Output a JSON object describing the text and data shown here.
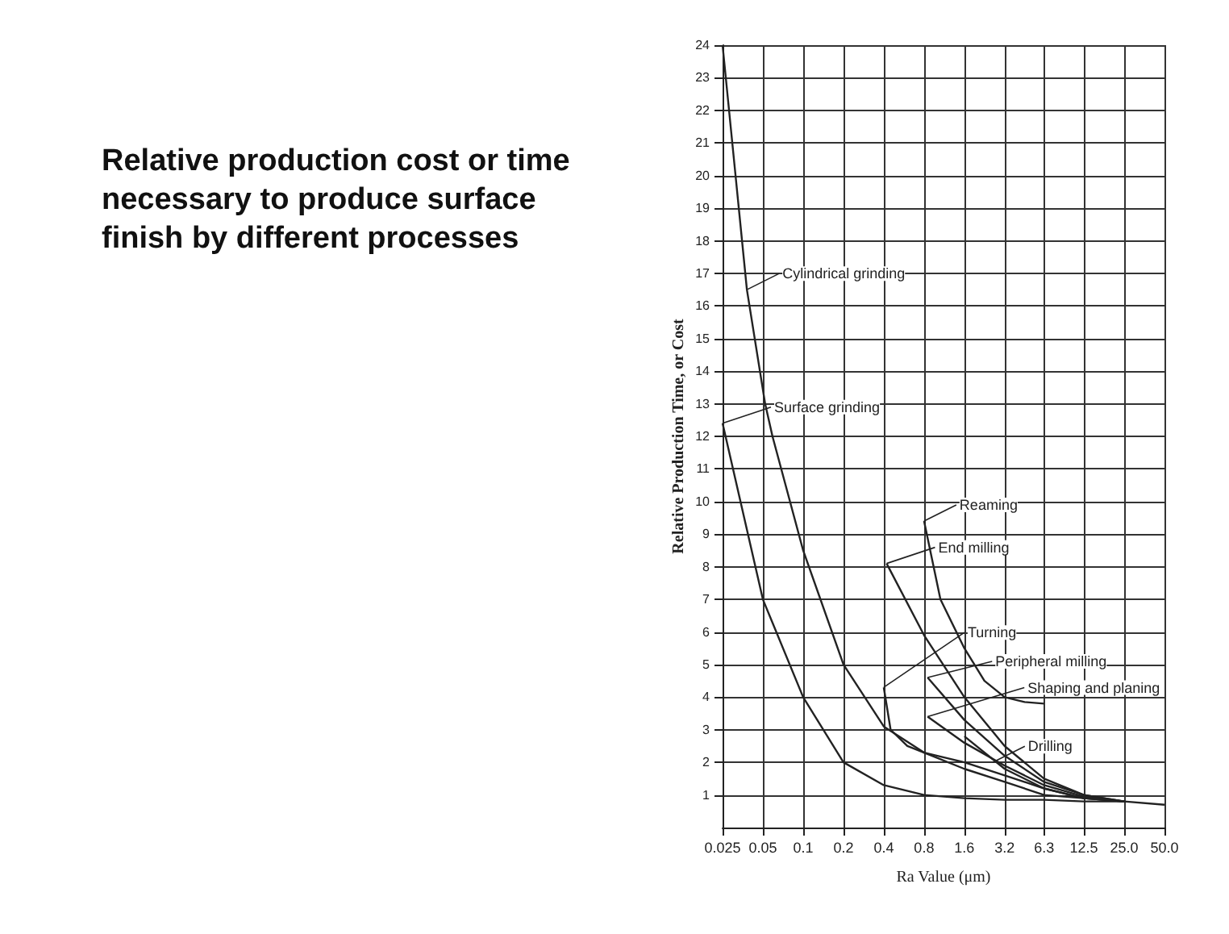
{
  "chart_data": {
    "type": "line",
    "title": "Relative production cost or time necessary to produce surface finish by different processes",
    "xlabel": "Ra Value (μm)",
    "ylabel": "Relative Production Time, or Cost",
    "log": "x",
    "xlim": [
      0.025,
      50
    ],
    "ylim": [
      0,
      24
    ],
    "xticks": [
      {
        "value": 0.025,
        "label": "0.025"
      },
      0.05,
      0.1,
      0.2,
      0.4,
      0.8,
      1.6,
      3.2,
      6.3,
      12.5,
      {
        "value": 25,
        "label": "25.0"
      },
      {
        "value": 50,
        "label": "50.0"
      }
    ],
    "yticks": [
      1,
      2,
      3,
      4,
      5,
      6,
      7,
      8,
      9,
      10,
      11,
      12,
      13,
      14,
      15,
      16,
      17,
      18,
      19,
      20,
      21,
      22,
      23,
      24
    ],
    "grid": true,
    "marker": "none",
    "line_style": "solid",
    "series": [
      {
        "color": "#222222",
        "x": [
          0.025,
          0.038,
          0.052,
          0.059,
          0.1,
          0.2,
          0.4,
          0.8,
          1.6,
          3.2,
          6.3,
          12.5,
          25,
          50
        ],
        "values": [
          24,
          16.5,
          13,
          12,
          8.5,
          5,
          3.1,
          2.3,
          1.8,
          1.4,
          1.0,
          0.9,
          0.8,
          0.7
        ]
      },
      {
        "color": "#222222",
        "x": [
          0.025,
          0.05,
          0.1,
          0.2,
          0.4,
          0.8,
          1.6,
          3.2,
          6.3,
          12.5,
          25
        ],
        "values": [
          12.4,
          7,
          4,
          2,
          1.3,
          1.0,
          0.9,
          0.85,
          0.85,
          0.8,
          0.8
        ]
      },
      {
        "color": "#222222",
        "x": [
          0.8,
          1.06,
          1.6,
          2.26,
          3.2,
          4.5,
          6.3
        ],
        "values": [
          9.4,
          7,
          5.5,
          4.5,
          4.0,
          3.85,
          3.8
        ]
      },
      {
        "color": "#222222",
        "x": [
          0.42,
          0.8,
          1.6,
          3.2,
          6.3,
          12.5,
          25
        ],
        "values": [
          8.1,
          5.9,
          4.0,
          2.5,
          1.5,
          1.0,
          0.8
        ]
      },
      {
        "color": "#222222",
        "x": [
          0.4,
          0.45,
          0.6,
          0.8,
          1.6,
          3.2,
          6.3,
          12.5,
          25
        ],
        "values": [
          4.3,
          3.0,
          2.5,
          2.3,
          2.0,
          1.6,
          1.2,
          0.9,
          0.8
        ]
      },
      {
        "color": "#222222",
        "x": [
          0.85,
          1.6,
          3.2,
          6.3,
          12.5,
          25
        ],
        "values": [
          4.6,
          3.3,
          2.2,
          1.4,
          1.0,
          0.8
        ]
      },
      {
        "color": "#222222",
        "x": [
          0.85,
          1.6,
          3.2,
          6.3,
          12.5,
          25
        ],
        "values": [
          3.4,
          2.6,
          1.9,
          1.3,
          0.95,
          0.8
        ]
      },
      {
        "color": "#222222",
        "x": [
          1.6,
          3.2,
          6.3,
          12.5,
          25
        ],
        "values": [
          2.8,
          1.8,
          1.2,
          0.9,
          0.8
        ]
      }
    ],
    "annotations": [
      {
        "text": "Cylindrical grinding",
        "x": 0.038,
        "y": 16.5
      },
      {
        "text": "Surface grinding",
        "x": 0.025,
        "y": 12.4
      },
      {
        "text": "Reaming",
        "x": 0.8,
        "y": 9.4
      },
      {
        "text": "End milling",
        "x": 0.42,
        "y": 8.1
      },
      {
        "text": "Turning",
        "x": 0.4,
        "y": 4.3
      },
      {
        "text": "Peripheral milling",
        "x": 0.85,
        "y": 4.6
      },
      {
        "text": "Shaping and planing",
        "x": 0.85,
        "y": 3.4
      },
      {
        "text": "Drilling",
        "x": 2.6,
        "y": 2.0
      }
    ]
  }
}
